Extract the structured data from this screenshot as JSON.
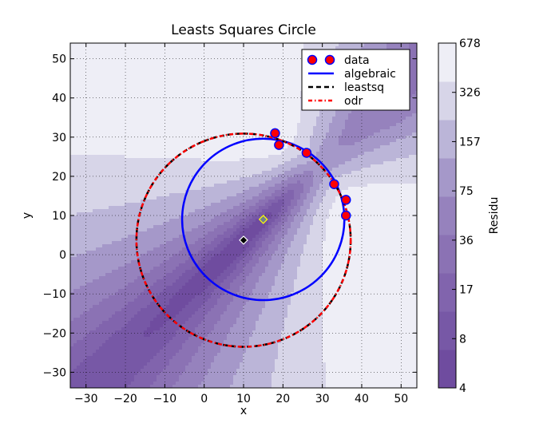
{
  "chart_data": {
    "type": "scatter",
    "title": "Leasts Squares Circle",
    "xlabel": "x",
    "ylabel": "y",
    "xlim": [
      -34,
      54
    ],
    "ylim": [
      -34,
      54
    ],
    "xticks": [
      -30,
      -20,
      -10,
      0,
      10,
      20,
      30,
      40,
      50
    ],
    "yticks": [
      -30,
      -20,
      -10,
      0,
      10,
      20,
      30,
      40,
      50
    ],
    "xtick_labels": [
      "−30",
      "−20",
      "−10",
      "0",
      "10",
      "20",
      "30",
      "40",
      "50"
    ],
    "ytick_labels": [
      "−30",
      "−20",
      "−10",
      "0",
      "10",
      "20",
      "30",
      "40",
      "50"
    ],
    "grid": true,
    "legend_position": "top-right",
    "data_points": {
      "name": "data",
      "x": [
        36,
        36,
        33,
        26,
        19,
        18
      ],
      "y": [
        14,
        10,
        18,
        26,
        28,
        31
      ],
      "color": "#ff0000"
    },
    "circles": [
      {
        "name": "algebraic",
        "cx": 15,
        "cy": 9,
        "r": 20.6,
        "color": "#0000ff",
        "style": "solid"
      },
      {
        "name": "leastsq",
        "cx": 10,
        "cy": 3.7,
        "r": 27.2,
        "color": "#000000",
        "style": "dashed"
      },
      {
        "name": "odr",
        "cx": 10,
        "cy": 3.7,
        "r": 27.2,
        "color": "#ff0000",
        "style": "dashdot"
      }
    ],
    "centers": [
      {
        "x": 15,
        "y": 9,
        "fill": "#708090",
        "edge": "#ffff00"
      },
      {
        "x": 10,
        "y": 3.7,
        "fill": "#000000",
        "edge": "#ffffff"
      }
    ],
    "colorbar": {
      "label": "Residu",
      "tick_labels": [
        "4",
        "8",
        "17",
        "36",
        "75",
        "157",
        "326",
        "678"
      ],
      "colors": [
        "#6f4c9f",
        "#7758a6",
        "#8164ad",
        "#8b72b4",
        "#9682bd",
        "#a598c9",
        "#bbb5d8",
        "#d7d5e8",
        "#eeeef6"
      ]
    },
    "legend": [
      {
        "label": "data"
      },
      {
        "label": "algebraic"
      },
      {
        "label": "leastsq"
      },
      {
        "label": "odr"
      }
    ]
  }
}
